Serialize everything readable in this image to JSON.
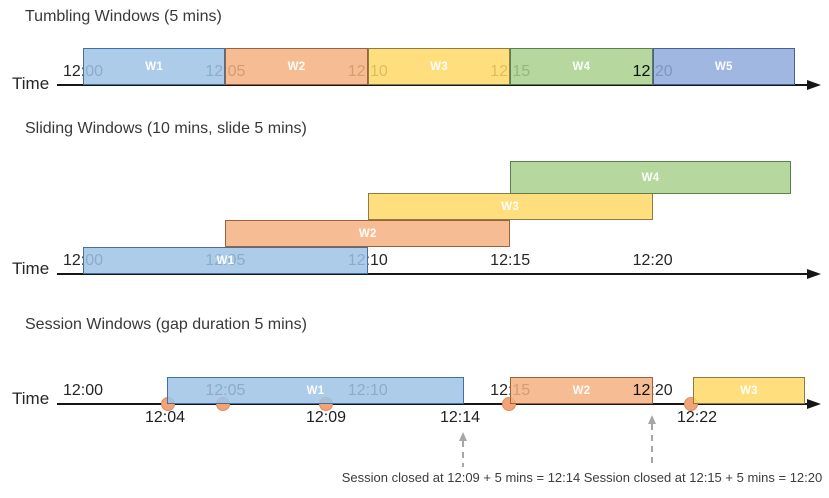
{
  "palette": {
    "blue": {
      "fill": "#9DC3E6",
      "border": "#41719C"
    },
    "orange": {
      "fill": "#F4B183",
      "border": "#9E6138"
    },
    "yellow": {
      "fill": "#FFD966",
      "border": "#8C7B45"
    },
    "green": {
      "fill": "#A9D18E",
      "border": "#5E7F4C"
    },
    "blue2": {
      "fill": "#8FAADC",
      "border": "#44619E"
    },
    "dot_fill": "#F2A377",
    "dot_border": "#DE8C60",
    "axis_color": "#161616",
    "tick_color": "#262626",
    "overlay_color": "#111111",
    "annotation_color": "#3d3d3d",
    "dashed_arrow_color": "#A6A6A6",
    "window_label_color": "#FFFFFF"
  },
  "sections": [
    {
      "id": "tumbling",
      "title": "Tumbling Windows (5 mins)",
      "time_label": "Time",
      "ticks": [
        {
          "text": "12:00"
        },
        {
          "text": "12:05"
        },
        {
          "text": "12:10"
        },
        {
          "text": "12:15"
        },
        {
          "text": "12:20",
          "overlay_prefix": "12",
          "overlay_suffix": ":20"
        }
      ],
      "windows": [
        {
          "label": "W1",
          "color": "blue",
          "start": "12:00",
          "end": "12:05"
        },
        {
          "label": "W2",
          "color": "orange",
          "start": "12:05",
          "end": "12:10"
        },
        {
          "label": "W3",
          "color": "yellow",
          "start": "12:10",
          "end": "12:15"
        },
        {
          "label": "W4",
          "color": "green",
          "start": "12:15",
          "end": "12:20"
        },
        {
          "label": "W5",
          "color": "blue2",
          "start": "12:20",
          "end": "12:25"
        }
      ]
    },
    {
      "id": "sliding",
      "title": "Sliding Windows (10 mins, slide 5 mins)",
      "time_label": "Time",
      "ticks": [
        {
          "text": "12:00"
        },
        {
          "text": "12:05"
        },
        {
          "text": "12:10"
        },
        {
          "text": "12:15"
        },
        {
          "text": "12:20"
        }
      ],
      "windows": [
        {
          "label": "W1",
          "color": "blue",
          "start": "12:00",
          "end": "12:10"
        },
        {
          "label": "W2",
          "color": "orange",
          "start": "12:05",
          "end": "12:15"
        },
        {
          "label": "W3",
          "color": "yellow",
          "start": "12:10",
          "end": "12:20"
        },
        {
          "label": "W4",
          "color": "green",
          "start": "12:15",
          "end": "12:25"
        }
      ]
    },
    {
      "id": "session",
      "title": "Session Windows (gap duration 5 mins)",
      "time_label": "Time",
      "ticks": [
        {
          "text": "12:00"
        },
        {
          "text": "12:05"
        },
        {
          "text": "12:10"
        },
        {
          "text": "12:15"
        },
        {
          "text": "12:20",
          "overlay_prefix": "12",
          "overlay_suffix": ":20"
        }
      ],
      "windows": [
        {
          "label": "W1",
          "color": "blue",
          "start": "12:04",
          "end": "12:14"
        },
        {
          "label": "W2",
          "color": "orange",
          "start": "12:15",
          "end": "12:20"
        },
        {
          "label": "W3",
          "color": "yellow",
          "start": "12:22",
          "end": ""
        }
      ],
      "events": [
        {
          "time": "12:04"
        },
        {
          "time": "12:05"
        },
        {
          "time": "12:09"
        },
        {
          "time": "12:15"
        },
        {
          "time": "12:22"
        }
      ],
      "below_labels": [
        "12:04",
        "12:09",
        "12:14",
        "12:22"
      ],
      "annotations": [
        {
          "text": "Session closed at 12:09 + 5 mins = 12:14"
        },
        {
          "text": "Session closed at 12:15 + 5 mins = 12:20"
        }
      ]
    }
  ]
}
